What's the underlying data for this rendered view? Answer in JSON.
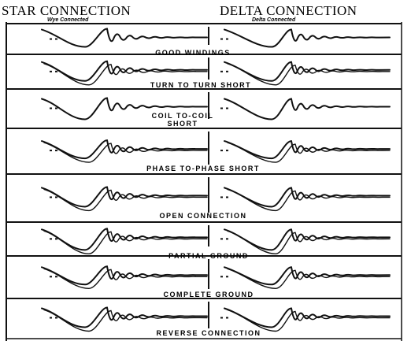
{
  "headers": {
    "star": "STAR CONNECTION",
    "delta": "DELTA CONNECTION",
    "star_sub": "Wye Connected",
    "delta_sub": "Delta Connected"
  },
  "rows": [
    {
      "caption": "GOOD WINDINGS"
    },
    {
      "caption": "TURN TO TURN SHORT"
    },
    {
      "caption": "COIL TO-COIL SHORT"
    },
    {
      "caption": "PHASE TO-PHASE SHORT"
    },
    {
      "caption": "OPEN CONNECTION"
    },
    {
      "caption": "PARTIAL GROUND"
    },
    {
      "caption": "COMPLETE GROUND"
    },
    {
      "caption": "REVERSE CONNECTION"
    }
  ],
  "colors": {
    "ink": "#111111",
    "background": "#ffffff"
  }
}
